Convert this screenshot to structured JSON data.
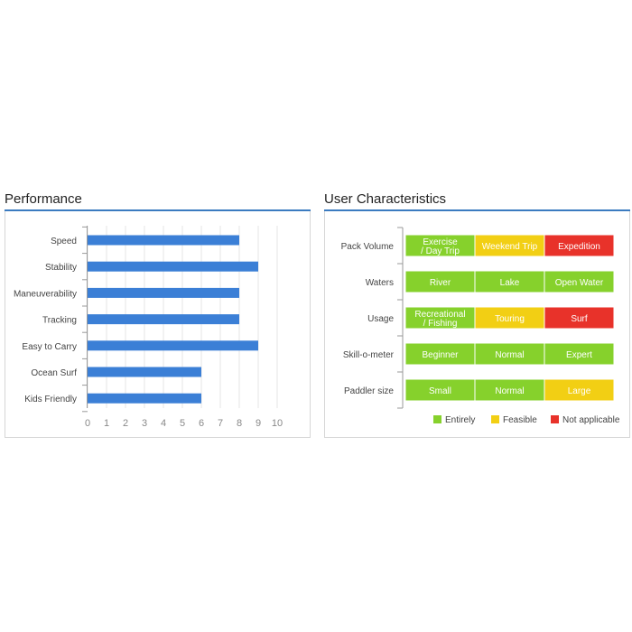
{
  "performance": {
    "title": "Performance",
    "chart_data": {
      "type": "bar",
      "orientation": "horizontal",
      "categories": [
        "Speed",
        "Stability",
        "Maneuverability",
        "Tracking",
        "Easy to Carry",
        "Ocean Surf",
        "Kids Friendly"
      ],
      "values": [
        8,
        9,
        8,
        8,
        9,
        6,
        6
      ],
      "xlim": [
        0,
        10
      ],
      "ticks": [
        "0",
        "1",
        "2",
        "3",
        "4",
        "5",
        "6",
        "7",
        "8",
        "9",
        "10"
      ],
      "grid": true,
      "bar_color": "#3b7fd6"
    }
  },
  "user_characteristics": {
    "title": "User Characteristics",
    "chart_data": {
      "type": "table",
      "rows": [
        {
          "label": "Pack Volume",
          "cells": [
            {
              "lines": [
                "Exercise",
                "/ Day Trip"
              ],
              "status": "entirely"
            },
            {
              "lines": [
                "Weekend Trip"
              ],
              "status": "feasible"
            },
            {
              "lines": [
                "Expedition"
              ],
              "status": "not_applicable"
            }
          ]
        },
        {
          "label": "Waters",
          "cells": [
            {
              "lines": [
                "River"
              ],
              "status": "entirely"
            },
            {
              "lines": [
                "Lake"
              ],
              "status": "entirely"
            },
            {
              "lines": [
                "Open Water"
              ],
              "status": "entirely"
            }
          ]
        },
        {
          "label": "Usage",
          "cells": [
            {
              "lines": [
                "Recreational",
                "/ Fishing"
              ],
              "status": "entirely"
            },
            {
              "lines": [
                "Touring"
              ],
              "status": "feasible"
            },
            {
              "lines": [
                "Surf"
              ],
              "status": "not_applicable"
            }
          ]
        },
        {
          "label": "Skill-o-meter",
          "cells": [
            {
              "lines": [
                "Beginner"
              ],
              "status": "entirely"
            },
            {
              "lines": [
                "Normal"
              ],
              "status": "entirely"
            },
            {
              "lines": [
                "Expert"
              ],
              "status": "entirely"
            }
          ]
        },
        {
          "label": "Paddler size",
          "cells": [
            {
              "lines": [
                "Small"
              ],
              "status": "entirely"
            },
            {
              "lines": [
                "Normal"
              ],
              "status": "entirely"
            },
            {
              "lines": [
                "Large"
              ],
              "status": "feasible"
            }
          ]
        }
      ],
      "legend": [
        {
          "key": "entirely",
          "label": "Entirely",
          "color": "#86d12c"
        },
        {
          "key": "feasible",
          "label": "Feasible",
          "color": "#f2cf14"
        },
        {
          "key": "not_applicable",
          "label": "Not applicable",
          "color": "#e8322a"
        }
      ],
      "legend_position": "bottom-right"
    }
  }
}
